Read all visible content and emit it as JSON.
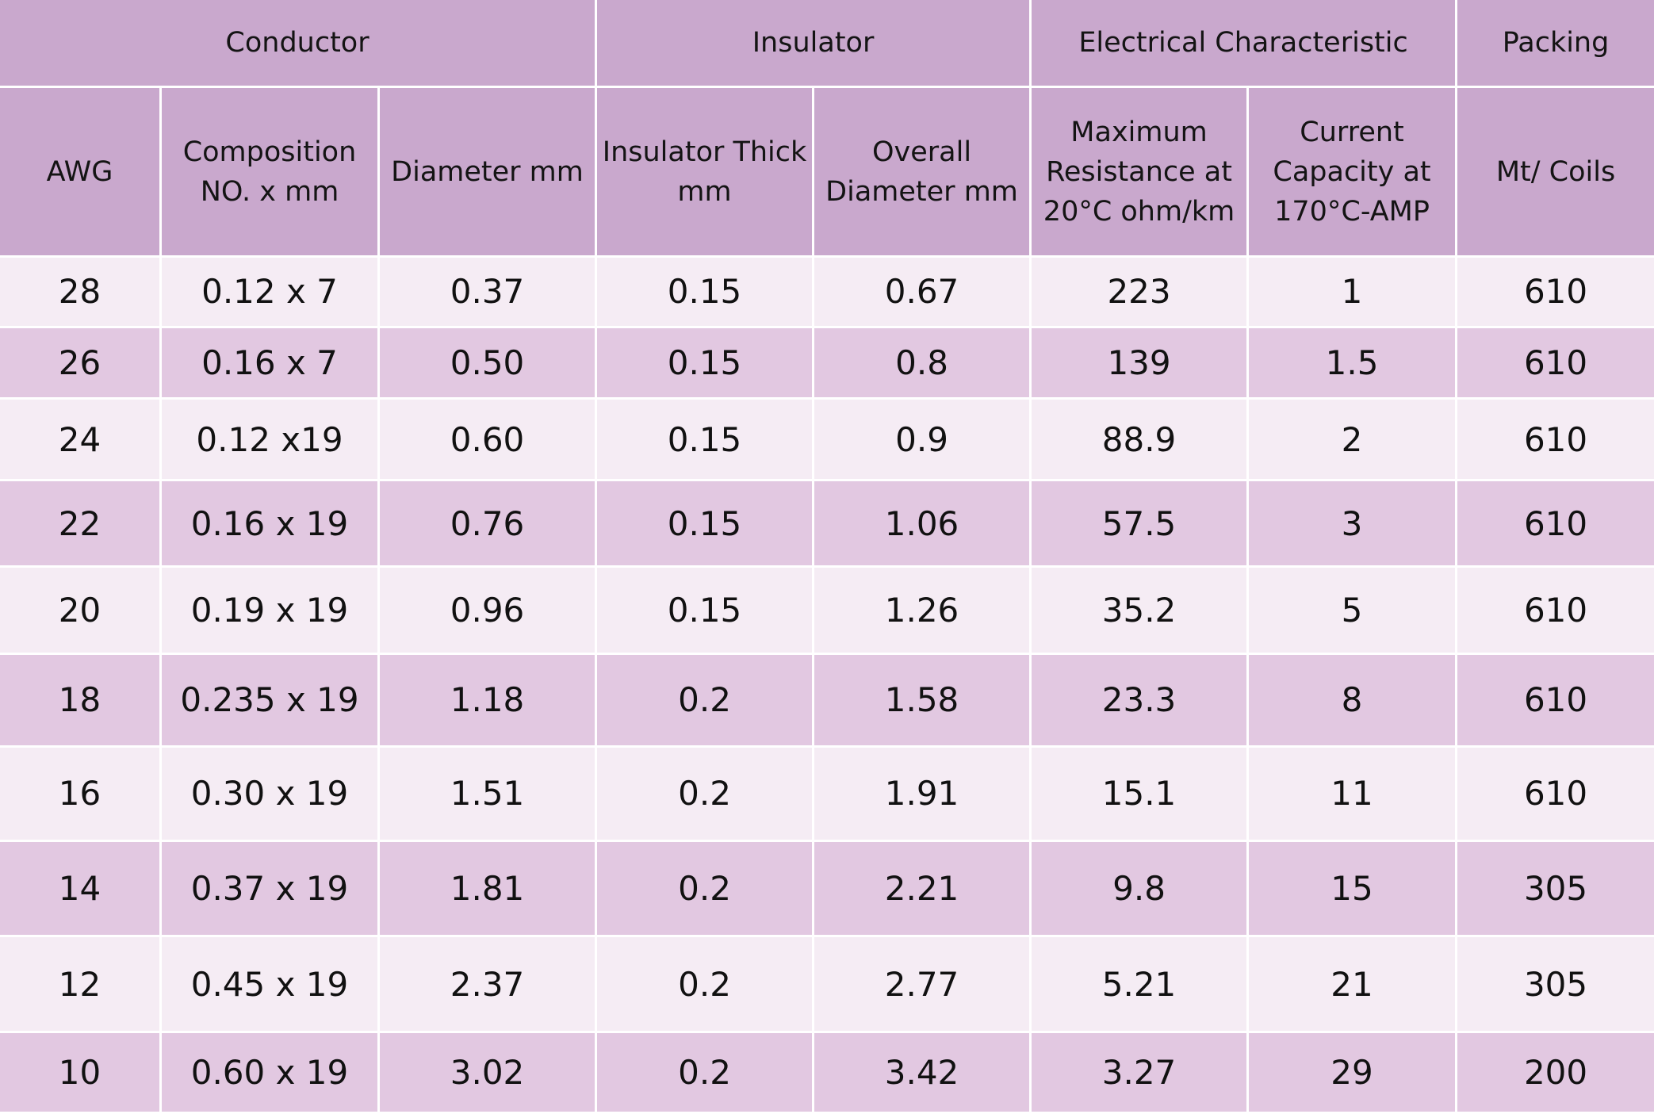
{
  "colors": {
    "header_bg": "#c9a8cd",
    "row_light": "#f5ecf4",
    "row_dark": "#e2c8e1",
    "gridline": "#ffffff"
  },
  "groups": [
    "Conductor",
    "Insulator",
    "Electrical Characteristic",
    "Packing"
  ],
  "columns": [
    "AWG",
    "Composition NO. x mm",
    "Diameter mm",
    "Insulator Thick mm",
    "Overall Diameter mm",
    "Maximum Resistance at 20°C ohm/km",
    "Current Capacity at 170°C-AMP",
    "Mt/ Coils"
  ],
  "rows": [
    [
      "28",
      "0.12 x 7",
      "0.37",
      "0.15",
      "0.67",
      "223",
      "1",
      "610"
    ],
    [
      "26",
      "0.16 x 7",
      "0.50",
      "0.15",
      "0.8",
      "139",
      "1.5",
      "610"
    ],
    [
      "24",
      "0.12 x19",
      "0.60",
      "0.15",
      "0.9",
      "88.9",
      "2",
      "610"
    ],
    [
      "22",
      "0.16 x 19",
      "0.76",
      "0.15",
      "1.06",
      "57.5",
      "3",
      "610"
    ],
    [
      "20",
      "0.19 x 19",
      "0.96",
      "0.15",
      "1.26",
      "35.2",
      "5",
      "610"
    ],
    [
      "18",
      "0.235 x 19",
      "1.18",
      "0.2",
      "1.58",
      "23.3",
      "8",
      "610"
    ],
    [
      "16",
      "0.30 x 19",
      "1.51",
      "0.2",
      "1.91",
      "15.1",
      "11",
      "610"
    ],
    [
      "14",
      "0.37 x 19",
      "1.81",
      "0.2",
      "2.21",
      "9.8",
      "15",
      "305"
    ],
    [
      "12",
      "0.45 x 19",
      "2.37",
      "0.2",
      "2.77",
      "5.21",
      "21",
      "305"
    ],
    [
      "10",
      "0.60 x 19",
      "3.02",
      "0.2",
      "3.42",
      "3.27",
      "29",
      "200"
    ]
  ]
}
